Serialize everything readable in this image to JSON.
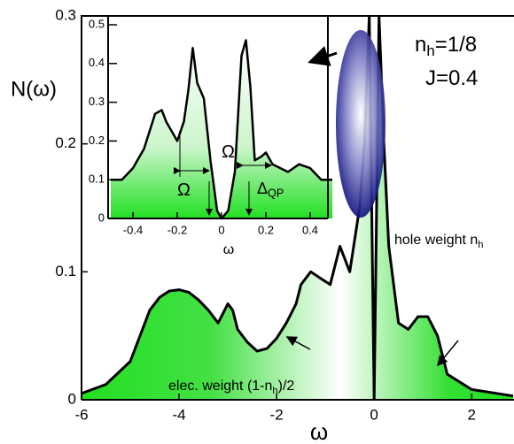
{
  "chart_data": [
    {
      "type": "area",
      "x_label": "ω",
      "y_label": "N(ω)",
      "color": "#000000",
      "fill": "#22e022",
      "x": [
        -6,
        -5.5,
        -5,
        -4.8,
        -4.6,
        -4.4,
        -4.2,
        -4,
        -3.8,
        -3.6,
        -3.4,
        -3.2,
        -3,
        -2.9,
        -2.8,
        -2.6,
        -2.4,
        -2.2,
        -2,
        -1.8,
        -1.6,
        -1.5,
        -1.3,
        -1.1,
        -0.9,
        -0.7,
        -0.5,
        -0.3,
        -0.2,
        -0.1,
        0,
        0.1,
        0.2,
        0.3,
        0.5,
        0.7,
        0.9,
        1.1,
        1.3,
        1.5,
        2,
        2.85
      ],
      "values": [
        0.005,
        0.012,
        0.03,
        0.05,
        0.07,
        0.08,
        0.085,
        0.086,
        0.084,
        0.078,
        0.07,
        0.06,
        0.075,
        0.07,
        0.055,
        0.045,
        0.038,
        0.04,
        0.048,
        0.06,
        0.075,
        0.09,
        0.1,
        0.095,
        0.09,
        0.12,
        0.1,
        0.15,
        0.2,
        0.3,
        0,
        0.3,
        0.2,
        0.12,
        0.06,
        0.055,
        0.065,
        0.065,
        0.05,
        0.02,
        0.008,
        0.003
      ],
      "xlim": [
        -6,
        2.85
      ],
      "ylim": [
        0,
        0.3
      ],
      "xticks": [
        -6,
        -4,
        -2,
        0,
        2
      ],
      "yticks": [
        0,
        0.1,
        0.2,
        0.3
      ],
      "annotations": [
        [
          "n",
          "h",
          "=1/8"
        ],
        [
          "J=0.4"
        ],
        [
          "hole weight n",
          "h"
        ],
        [
          "elec. weight (1-n",
          "h",
          ")/2"
        ]
      ]
    },
    {
      "type": "area",
      "x_label": "ω",
      "color": "#000000",
      "fill": "#22e022",
      "x": [
        -0.5,
        -0.45,
        -0.4,
        -0.35,
        -0.3,
        -0.27,
        -0.25,
        -0.2,
        -0.17,
        -0.15,
        -0.13,
        -0.11,
        -0.08,
        -0.05,
        -0.02,
        0,
        0.03,
        0.06,
        0.09,
        0.11,
        0.13,
        0.15,
        0.18,
        0.2,
        0.23,
        0.3,
        0.35,
        0.4,
        0.45,
        0.5
      ],
      "values": [
        0.1,
        0.1,
        0.13,
        0.18,
        0.27,
        0.28,
        0.25,
        0.2,
        0.25,
        0.33,
        0.44,
        0.35,
        0.31,
        0.15,
        0.02,
        0,
        0.02,
        0.12,
        0.42,
        0.46,
        0.34,
        0.15,
        0.16,
        0.17,
        0.14,
        0.12,
        0.14,
        0.13,
        0.1,
        0.1
      ],
      "xlim": [
        -0.5,
        0.5
      ],
      "ylim": [
        0,
        0.5
      ],
      "xticks": [
        -0.4,
        -0.2,
        0,
        0.2,
        0.4
      ],
      "yticks": [
        0,
        0.1,
        0.2,
        0.3,
        0.4,
        0.5
      ],
      "annotations": [
        [
          "Ω"
        ],
        [
          "Ω"
        ],
        [
          "Δ",
          "QP"
        ]
      ]
    }
  ]
}
